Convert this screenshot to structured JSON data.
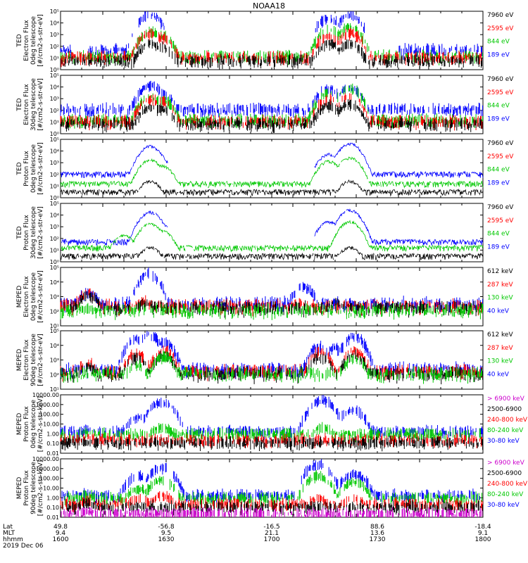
{
  "title": "NOAA18",
  "colors": {
    "blue": "#0000ff",
    "red": "#ff0000",
    "green": "#00c800",
    "black": "#000000",
    "magenta": "#cc00cc",
    "brightgreen": "#00ff00"
  },
  "footer": {
    "row_labels": [
      "Lat",
      "MLT",
      "hhmm",
      "2019 Dec 06"
    ],
    "ticks": [
      {
        "lat": "49.8",
        "mlt": "9.4",
        "hhmm": "1600"
      },
      {
        "lat": "-56.8",
        "mlt": "9.5",
        "hhmm": "1630"
      },
      {
        "lat": "-16.5",
        "mlt": "21.1",
        "hhmm": "1700"
      },
      {
        "lat": "88.6",
        "mlt": "13.6",
        "hhmm": "1730"
      },
      {
        "lat": "-18.4",
        "mlt": "9.1",
        "hhmm": "1800"
      }
    ]
  },
  "chart_data": [
    {
      "type": "scatter",
      "ylabel": [
        "TED",
        "Electron Flux",
        "0deg telescope",
        "[#/cm2-s-str-eV]"
      ],
      "yscale": "log",
      "ylim": [
        1,
        100000
      ],
      "yticks": [
        "10⁰",
        "10¹",
        "10²",
        "10³",
        "10⁴",
        "10⁵"
      ],
      "legend": [
        {
          "label": "7960 eV",
          "color": "#000000"
        },
        {
          "label": "2595 eV",
          "color": "#ff0000"
        },
        {
          "label": "844 eV",
          "color": "#00c800"
        },
        {
          "label": "189 eV",
          "color": "#0000ff"
        }
      ],
      "series": [
        {
          "color": "#0000ff",
          "peaks": [
            [
              1642.5,
              60000
            ],
            [
              1648,
              3000
            ],
            [
              1727,
              30000
            ],
            [
              1737,
              50000
            ]
          ],
          "base": 40,
          "gaps": [
            [
              1605,
              1613
            ],
            [
              1651,
              1720
            ],
            [
              1744,
              1760
            ]
          ]
        },
        {
          "color": "#00c800",
          "peaks": [
            [
              1642.5,
              2000
            ],
            [
              1648,
              800
            ],
            [
              1727,
              3000
            ],
            [
              1737,
              5000
            ]
          ],
          "base": 12
        },
        {
          "color": "#ff0000",
          "peaks": [
            [
              1642.5,
              1500
            ],
            [
              1648,
              600
            ],
            [
              1727,
              800
            ],
            [
              1737,
              1500
            ]
          ],
          "base": 10
        },
        {
          "color": "#000000",
          "peaks": [
            [
              1642.5,
              200
            ],
            [
              1648,
              100
            ],
            [
              1727,
              200
            ],
            [
              1737,
              200
            ]
          ],
          "base": 5
        }
      ]
    },
    {
      "type": "scatter",
      "ylabel": [
        "TED",
        "Electron Flux",
        "30deg telescope",
        "[#/cm2-s-str-eV]"
      ],
      "yscale": "log",
      "ylim": [
        1,
        100000
      ],
      "yticks": [
        "10⁰",
        "10¹",
        "10²",
        "10³",
        "10⁴",
        "10⁵"
      ],
      "legend": [
        {
          "label": "7960 eV",
          "color": "#000000"
        },
        {
          "label": "2595 eV",
          "color": "#ff0000"
        },
        {
          "label": "844 eV",
          "color": "#00c800"
        },
        {
          "label": "189 eV",
          "color": "#0000ff"
        }
      ],
      "series": [
        {
          "color": "#0000ff",
          "peaks": [
            [
              1642.5,
              15000
            ],
            [
              1648,
              3000
            ],
            [
              1727,
              8000
            ],
            [
              1737,
              10000
            ]
          ],
          "base": 100
        },
        {
          "color": "#00c800",
          "peaks": [
            [
              1642.5,
              1500
            ],
            [
              1648,
              1000
            ],
            [
              1727,
              3000
            ],
            [
              1737,
              8000
            ]
          ],
          "base": 12
        },
        {
          "color": "#ff0000",
          "peaks": [
            [
              1642.5,
              1000
            ],
            [
              1648,
              600
            ],
            [
              1727,
              1000
            ],
            [
              1737,
              2000
            ]
          ],
          "base": 10
        },
        {
          "color": "#000000",
          "peaks": [
            [
              1642.5,
              200
            ],
            [
              1648,
              150
            ],
            [
              1727,
              300
            ],
            [
              1737,
              400
            ]
          ],
          "base": 6
        }
      ]
    },
    {
      "type": "line",
      "ylabel": [
        "TED",
        "Proton Flux",
        "0deg telescope",
        "[#/cm2-s-str-eV]"
      ],
      "yscale": "log",
      "ylim": [
        1,
        100000
      ],
      "yticks": [
        "10⁰",
        "10¹",
        "10²",
        "10³",
        "10⁴",
        "10⁵"
      ],
      "legend": [
        {
          "label": "7960 eV",
          "color": "#000000"
        },
        {
          "label": "2595 eV",
          "color": "#ff0000"
        },
        {
          "label": "844 eV",
          "color": "#00c800"
        },
        {
          "label": "189 eV",
          "color": "#0000ff"
        }
      ],
      "series": [
        {
          "color": "#0000ff",
          "peaks": [
            [
              1642.5,
              30000
            ],
            [
              1648,
              2000
            ],
            [
              1727,
              6000
            ],
            [
              1737,
              50000
            ]
          ],
          "base": 100,
          "gaps": [
            [
              1651,
              1720
            ]
          ]
        },
        {
          "color": "#00c800",
          "peaks": [
            [
              1642.5,
              2000
            ],
            [
              1648,
              600
            ],
            [
              1727,
              1500
            ],
            [
              1737,
              3000
            ]
          ],
          "base": 15
        },
        {
          "color": "#000000",
          "peaks": [
            [
              1642.5,
              30
            ],
            [
              1737,
              30
            ]
          ],
          "base": 3
        }
      ]
    },
    {
      "type": "line",
      "ylabel": [
        "TED",
        "Proton Flux",
        "30deg telescope",
        "[#/cm2-s-str-eV]"
      ],
      "yscale": "log",
      "ylim": [
        1,
        100000
      ],
      "yticks": [
        "10⁰",
        "10¹",
        "10²",
        "10³",
        "10⁴",
        "10⁵"
      ],
      "legend": [
        {
          "label": "7960 eV",
          "color": "#000000"
        },
        {
          "label": "2595 eV",
          "color": "#ff0000"
        },
        {
          "label": "844 eV",
          "color": "#00c800"
        },
        {
          "label": "189 eV",
          "color": "#0000ff"
        }
      ],
      "series": [
        {
          "color": "#0000ff",
          "peaks": [
            [
              1642.5,
              20000
            ],
            [
              1648,
              1500
            ],
            [
              1727,
              3000
            ],
            [
              1737,
              30000
            ]
          ],
          "base": 50,
          "gaps": [
            [
              1651,
              1720
            ]
          ]
        },
        {
          "color": "#00c800",
          "peaks": [
            [
              1630,
              200
            ],
            [
              1642.5,
              2000
            ],
            [
              1648,
              500
            ],
            [
              1737,
              3000
            ]
          ],
          "base": 15
        },
        {
          "color": "#000000",
          "peaks": [
            [
              1642.5,
              20
            ],
            [
              1737,
              20
            ]
          ],
          "base": 3
        }
      ]
    },
    {
      "type": "scatter",
      "ylabel": [
        "MEPED",
        "Electron Flux",
        "0deg telescope",
        "[#/cm2-s-str-eV]"
      ],
      "yscale": "log",
      "ylim": [
        10,
        100000
      ],
      "yticks": [
        "10¹",
        "10²",
        "10³",
        "10⁴",
        "10⁵"
      ],
      "legend": [
        {
          "label": "612 keV",
          "color": "#000000"
        },
        {
          "label": "287 keV",
          "color": "#ff0000"
        },
        {
          "label": "130 keV",
          "color": "#00c800"
        },
        {
          "label": "40 keV",
          "color": "#0000ff"
        }
      ],
      "series": [
        {
          "color": "#0000ff",
          "peaks": [
            [
              1613,
              2000
            ],
            [
              1642,
              40000
            ],
            [
              1715,
              5000
            ]
          ],
          "base": 300
        },
        {
          "color": "#ff0000",
          "peaks": [
            [
              1613,
              2000
            ],
            [
              1640,
              500
            ],
            [
              1712,
              400
            ]
          ],
          "base": 200
        },
        {
          "color": "#000000",
          "peaks": [
            [
              1613,
              1500
            ],
            [
              1640,
              400
            ],
            [
              1730,
              500
            ]
          ],
          "base": 150
        },
        {
          "color": "#00c800",
          "peaks": [
            [
              1613,
              150
            ]
          ],
          "base": 100
        }
      ]
    },
    {
      "type": "scatter",
      "ylabel": [
        "MEPED",
        "Electron Flux",
        "90deg telescope",
        "[#/cm2-s-str-eV]"
      ],
      "yscale": "log",
      "ylim": [
        10,
        100000
      ],
      "yticks": [
        "10¹",
        "10²",
        "10³",
        "10⁴",
        "10⁵"
      ],
      "legend": [
        {
          "label": "612 keV",
          "color": "#000000"
        },
        {
          "label": "287 keV",
          "color": "#ff0000"
        },
        {
          "label": "130 keV",
          "color": "#00c800"
        },
        {
          "label": "40 keV",
          "color": "#0000ff"
        }
      ],
      "series": [
        {
          "color": "#0000ff",
          "peaks": [
            [
              1636,
              30000
            ],
            [
              1642,
              60000
            ],
            [
              1649,
              20000
            ],
            [
              1723,
              10000
            ],
            [
              1730,
              8000
            ],
            [
              1739,
              50000
            ]
          ],
          "base": 200
        },
        {
          "color": "#ff0000",
          "peaks": [
            [
              1613,
              700
            ],
            [
              1636,
              3000
            ],
            [
              1649,
              5000
            ],
            [
              1723,
              4000
            ],
            [
              1739,
              5000
            ]
          ],
          "base": 150
        },
        {
          "color": "#000000",
          "peaks": [
            [
              1613,
              400
            ],
            [
              1636,
              1500
            ],
            [
              1649,
              2000
            ],
            [
              1723,
              2000
            ],
            [
              1739,
              2500
            ]
          ],
          "base": 100
        },
        {
          "color": "#00c800",
          "peaks": [
            [
              1636,
              500
            ],
            [
              1649,
              2000
            ],
            [
              1739,
              1500
            ]
          ],
          "base": 100
        }
      ]
    },
    {
      "type": "scatter",
      "ylabel": [
        "MEPED",
        "Proton Flux",
        "0deg telescope",
        "[#/cm2-s-str-keV]"
      ],
      "yscale": "log",
      "ylim": [
        0.01,
        10000
      ],
      "yticks": [
        "0.01",
        "0.10",
        "1.00",
        "10.00",
        "100.00",
        "1000.00",
        "10000.00"
      ],
      "legend": [
        {
          "label": "> 6900 keV",
          "color": "#cc00cc"
        },
        {
          "label": "2500-6900",
          "color": "#000000"
        },
        {
          "label": "240-800 keV",
          "color": "#ff0000"
        },
        {
          "label": "80-240 keV",
          "color": "#00c800"
        },
        {
          "label": "30-80 keV",
          "color": "#0000ff"
        }
      ],
      "series": [
        {
          "color": "#0000ff",
          "peaks": [
            [
              1613,
              3
            ],
            [
              1637,
              50
            ],
            [
              1648,
              2000
            ],
            [
              1724,
              3000
            ],
            [
              1738,
              300
            ]
          ],
          "base": 1.5
        },
        {
          "color": "#00c800",
          "peaks": [
            [
              1613,
              2
            ],
            [
              1648,
              5
            ],
            [
              1724,
              5
            ]
          ],
          "base": 0.8
        },
        {
          "color": "#ff0000",
          "peaks": [
            [
              1613,
              0.5
            ]
          ],
          "base": 0.2
        },
        {
          "color": "#000000",
          "peaks": [
            [
              1613,
              0.15
            ]
          ],
          "base": 0.1
        }
      ]
    },
    {
      "type": "scatter",
      "ylabel": [
        "MEPED",
        "Proton Flux",
        "90deg telescope",
        "[#/cm2-s-str-keV]"
      ],
      "yscale": "log",
      "ylim": [
        0.01,
        10000
      ],
      "yticks": [
        "0.01",
        "0.10",
        "1.00",
        "10.00",
        "100.00",
        "1000.00",
        "10000.00"
      ],
      "legend": [
        {
          "label": "> 6900 keV",
          "color": "#cc00cc"
        },
        {
          "label": "2500-6900",
          "color": "#000000"
        },
        {
          "label": "240-800 keV",
          "color": "#ff0000"
        },
        {
          "label": "80-240 keV",
          "color": "#00c800"
        },
        {
          "label": "30-80 keV",
          "color": "#0000ff"
        }
      ],
      "series": [
        {
          "color": "#0000ff",
          "peaks": [
            [
              1613,
              3
            ],
            [
              1637,
              200
            ],
            [
              1648,
              1500
            ],
            [
              1722,
              3000
            ],
            [
              1739,
              300
            ]
          ],
          "base": 1.5
        },
        {
          "color": "#00c800",
          "peaks": [
            [
              1613,
              2
            ],
            [
              1637,
              10
            ],
            [
              1648,
              80
            ],
            [
              1722,
              200
            ],
            [
              1739,
              50
            ]
          ],
          "base": 0.8
        },
        {
          "color": "#ff0000",
          "peaks": [
            [
              1613,
              0.5
            ],
            [
              1637,
              1
            ],
            [
              1648,
              2
            ],
            [
              1722,
              1
            ],
            [
              1739,
              1
            ]
          ],
          "base": 0.2
        },
        {
          "color": "#000000",
          "peaks": [
            [
              1613,
              0.3
            ]
          ],
          "base": 0.1
        },
        {
          "color": "#cc00cc",
          "peaks": [
            [
              1613,
              0.05
            ]
          ],
          "base": 0.02
        }
      ]
    }
  ]
}
